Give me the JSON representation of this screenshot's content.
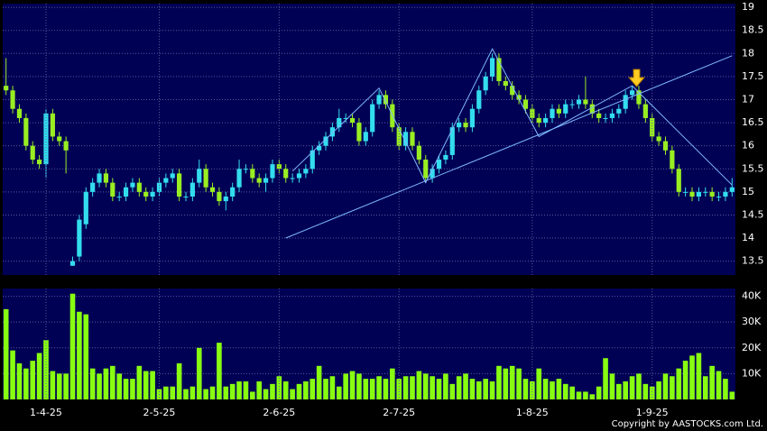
{
  "chart_data": [
    {
      "type": "candlestick",
      "open": [
        17.3,
        17.2,
        16.8,
        16.6,
        16.0,
        15.7,
        15.6,
        16.7,
        16.2,
        16.1,
        13.4,
        13.6,
        14.3,
        15.0,
        15.2,
        15.4,
        15.2,
        14.9,
        14.9,
        15.1,
        15.2,
        15.0,
        14.9,
        15.0,
        15.2,
        15.3,
        15.4,
        14.9,
        14.9,
        15.2,
        15.5,
        15.1,
        15.0,
        14.8,
        14.9,
        15.1,
        15.5,
        15.5,
        15.3,
        15.2,
        15.3,
        15.6,
        15.5,
        15.3,
        15.3,
        15.4,
        15.5,
        15.9,
        16.0,
        16.2,
        16.4,
        16.6,
        16.6,
        16.5,
        16.1,
        16.3,
        16.9,
        17.1,
        16.9,
        16.4,
        16.0,
        16.3,
        16.0,
        15.7,
        15.3,
        15.5,
        15.7,
        15.8,
        16.4,
        16.5,
        16.4,
        16.8,
        17.2,
        17.5,
        17.9,
        17.4,
        17.3,
        17.1,
        17.0,
        16.8,
        16.6,
        16.5,
        16.6,
        16.8,
        16.7,
        16.9,
        16.9,
        17.0,
        16.9,
        16.7,
        16.6,
        16.6,
        16.7,
        16.8,
        17.1,
        17.2,
        16.9,
        16.6,
        16.2,
        16.1,
        15.9,
        15.5,
        15.0,
        15.0,
        14.9,
        15.0,
        15.0,
        14.9,
        14.9,
        15.0
      ],
      "high": [
        17.9,
        17.3,
        16.9,
        16.7,
        16.1,
        15.8,
        16.8,
        16.8,
        16.3,
        16.2,
        13.6,
        14.5,
        15.1,
        15.3,
        15.5,
        15.5,
        15.3,
        15.0,
        15.2,
        15.3,
        15.3,
        15.1,
        15.1,
        15.3,
        15.4,
        15.5,
        15.5,
        15.0,
        15.3,
        15.7,
        15.6,
        15.2,
        15.1,
        15.0,
        15.2,
        15.7,
        15.6,
        15.6,
        15.4,
        15.4,
        15.7,
        15.7,
        15.6,
        15.4,
        15.5,
        15.6,
        16.0,
        16.1,
        16.3,
        16.5,
        16.8,
        16.7,
        16.7,
        16.6,
        16.4,
        17.0,
        17.2,
        17.2,
        17.0,
        16.5,
        16.4,
        16.4,
        16.1,
        15.8,
        15.6,
        15.8,
        15.9,
        16.5,
        16.6,
        16.6,
        16.9,
        17.3,
        17.6,
        18.0,
        18.0,
        17.5,
        17.4,
        17.2,
        17.1,
        16.9,
        16.7,
        16.7,
        16.9,
        16.9,
        17.0,
        17.0,
        17.1,
        17.5,
        17.0,
        16.8,
        16.7,
        16.8,
        16.9,
        17.2,
        17.3,
        17.3,
        17.0,
        16.7,
        16.3,
        16.2,
        16.0,
        15.6,
        15.1,
        15.1,
        15.1,
        15.1,
        15.1,
        15.0,
        15.1,
        15.3
      ],
      "low": [
        17.1,
        16.7,
        16.5,
        15.9,
        15.6,
        15.5,
        15.3,
        16.1,
        16.0,
        15.4,
        13.4,
        13.5,
        14.2,
        14.9,
        15.1,
        15.1,
        14.8,
        14.8,
        14.8,
        15.0,
        14.9,
        14.8,
        14.8,
        14.9,
        15.1,
        15.2,
        14.8,
        14.8,
        14.8,
        15.1,
        15.0,
        14.9,
        14.7,
        14.6,
        14.8,
        15.0,
        15.4,
        15.2,
        15.1,
        15.0,
        15.2,
        15.4,
        15.2,
        15.2,
        15.2,
        15.3,
        15.4,
        15.8,
        15.9,
        16.1,
        16.3,
        16.5,
        16.4,
        16.0,
        16.0,
        16.2,
        16.8,
        16.8,
        16.3,
        15.9,
        15.9,
        15.9,
        15.6,
        15.2,
        15.2,
        15.4,
        15.6,
        15.7,
        16.3,
        16.3,
        16.3,
        16.7,
        17.1,
        17.4,
        17.3,
        17.2,
        17.0,
        16.9,
        16.7,
        16.5,
        16.4,
        16.4,
        16.5,
        16.6,
        16.6,
        16.8,
        16.8,
        16.8,
        16.6,
        16.5,
        16.5,
        16.5,
        16.6,
        16.7,
        17.0,
        16.8,
        16.5,
        16.1,
        16.0,
        15.8,
        15.4,
        14.9,
        14.9,
        14.8,
        14.8,
        14.9,
        14.8,
        14.8,
        14.8,
        14.9
      ],
      "close": [
        17.2,
        16.8,
        16.6,
        16.0,
        15.7,
        15.6,
        16.7,
        16.2,
        16.1,
        15.9,
        13.5,
        14.4,
        15.0,
        15.2,
        15.4,
        15.2,
        14.9,
        14.9,
        15.1,
        15.2,
        15.0,
        14.9,
        15.0,
        15.2,
        15.3,
        15.4,
        14.9,
        14.9,
        15.2,
        15.5,
        15.1,
        15.0,
        14.8,
        14.9,
        15.1,
        15.5,
        15.5,
        15.3,
        15.2,
        15.3,
        15.6,
        15.5,
        15.3,
        15.3,
        15.4,
        15.5,
        15.9,
        16.0,
        16.2,
        16.4,
        16.6,
        16.6,
        16.5,
        16.1,
        16.3,
        16.9,
        17.1,
        16.9,
        16.4,
        16.0,
        16.3,
        16.0,
        15.7,
        15.3,
        15.5,
        15.7,
        15.8,
        16.4,
        16.5,
        16.4,
        16.8,
        17.2,
        17.5,
        17.9,
        17.4,
        17.3,
        17.1,
        17.0,
        16.8,
        16.6,
        16.5,
        16.6,
        16.8,
        16.7,
        16.9,
        16.9,
        17.0,
        16.9,
        16.7,
        16.6,
        16.6,
        16.7,
        16.8,
        17.1,
        17.2,
        16.9,
        16.6,
        16.2,
        16.1,
        15.9,
        15.5,
        15.0,
        15.0,
        14.9,
        15.0,
        15.0,
        14.9,
        14.9,
        15.0,
        15.1
      ],
      "up_color": "#33ddee",
      "down_color": "#99ee22",
      "ylim": [
        13.2,
        19.08
      ],
      "yticks": [
        13.5,
        14,
        14.5,
        15,
        15.5,
        16,
        16.5,
        17,
        17.5,
        18,
        18.5,
        19
      ],
      "grid": true,
      "trendline_color": "#7fb8ff",
      "trendlines": [
        {
          "points": [
            [
              42,
              14.0
            ],
            [
              109,
              17.95
            ]
          ]
        },
        {
          "points": [
            [
              43,
              15.45
            ],
            [
              56,
              17.25
            ],
            [
              63,
              15.2
            ],
            [
              73,
              18.1
            ],
            [
              80,
              16.2
            ],
            [
              94,
              17.3
            ],
            [
              109,
              15.15
            ]
          ]
        }
      ]
    },
    {
      "type": "bar",
      "categories": [
        null,
        null,
        null,
        null,
        null,
        null,
        "1-4-25",
        null,
        null,
        null,
        null,
        null,
        null,
        null,
        null,
        null,
        null,
        null,
        null,
        null,
        null,
        null,
        null,
        "2-5-25",
        null,
        null,
        null,
        null,
        null,
        null,
        null,
        null,
        null,
        null,
        null,
        null,
        null,
        null,
        null,
        null,
        null,
        "2-6-25",
        null,
        null,
        null,
        null,
        null,
        null,
        null,
        null,
        null,
        null,
        null,
        null,
        null,
        null,
        null,
        null,
        null,
        "2-7-25",
        null,
        null,
        null,
        null,
        null,
        null,
        null,
        null,
        null,
        null,
        null,
        null,
        null,
        null,
        null,
        null,
        null,
        null,
        null,
        "1-8-25",
        null,
        null,
        null,
        null,
        null,
        null,
        null,
        null,
        null,
        null,
        null,
        null,
        null,
        null,
        null,
        null,
        null,
        "1-9-25",
        null,
        null,
        null,
        null,
        null,
        null,
        null,
        null,
        null,
        null,
        null,
        null
      ],
      "values": [
        35000,
        19000,
        14000,
        12000,
        15000,
        18000,
        23000,
        11000,
        10000,
        10000,
        41000,
        34000,
        33000,
        12000,
        10000,
        12000,
        13000,
        10000,
        8000,
        8000,
        13000,
        11000,
        11000,
        4000,
        5000,
        5000,
        14000,
        4000,
        5000,
        20000,
        4000,
        5000,
        22000,
        5000,
        6000,
        7000,
        7000,
        3000,
        7000,
        4000,
        6000,
        9000,
        7000,
        4000,
        6000,
        7000,
        8000,
        13000,
        8000,
        9000,
        5000,
        10000,
        11000,
        10000,
        8000,
        8000,
        9000,
        8000,
        12000,
        8000,
        9000,
        9000,
        11000,
        10000,
        9000,
        8000,
        10000,
        6000,
        9000,
        10000,
        8000,
        7000,
        8000,
        7000,
        13000,
        12000,
        13000,
        12000,
        8000,
        7000,
        12000,
        8000,
        7000,
        8000,
        6000,
        5000,
        3000,
        3000,
        2000,
        5000,
        16000,
        10000,
        6000,
        7000,
        9000,
        10000,
        6000,
        5000,
        7000,
        10000,
        9000,
        12000,
        15000,
        17000,
        18000,
        9000,
        13000,
        11000,
        8000,
        3000
      ],
      "color": "#88ff11",
      "ylim": [
        0,
        43000
      ],
      "yticks": [
        {
          "value": 10000,
          "label": "10K"
        },
        {
          "value": 20000,
          "label": "20K"
        },
        {
          "value": 30000,
          "label": "30K"
        },
        {
          "value": 40000,
          "label": "40K"
        }
      ],
      "grid": true
    }
  ],
  "footer": "Copyright by AASTOCKS.com Ltd."
}
